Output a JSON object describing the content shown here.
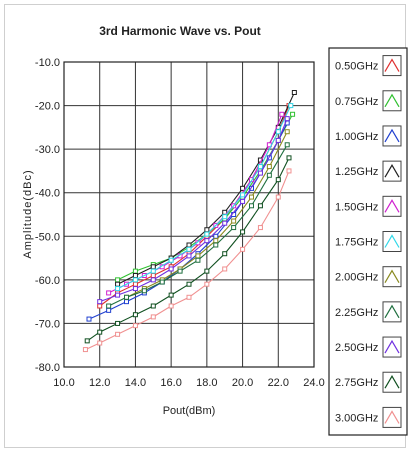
{
  "chart_data": {
    "type": "line",
    "title": "3rd Harmonic Wave vs. Pout",
    "xlabel": "Pout(dBm)",
    "ylabel": "Amplitude(dBc)",
    "xlim": [
      10.0,
      24.0
    ],
    "ylim": [
      -80.0,
      -10.0
    ],
    "x_ticks": [
      "10.0",
      "12.0",
      "14.0",
      "16.0",
      "18.0",
      "20.0",
      "22.0",
      "24.0"
    ],
    "y_ticks": [
      "-10.0",
      "-20.0",
      "-30.0",
      "-40.0",
      "-50.0",
      "-60.0",
      "-70.0",
      "-80.0"
    ],
    "grid": true,
    "legend_position": "right",
    "series": [
      {
        "name": "0.50GHz",
        "color": "#e03030",
        "marker": "square",
        "points": [
          [
            12.0,
            -66
          ],
          [
            13.0,
            -63
          ],
          [
            14.0,
            -61
          ],
          [
            15.0,
            -59
          ],
          [
            16.0,
            -57
          ],
          [
            17.0,
            -54
          ],
          [
            18.0,
            -50
          ],
          [
            19.0,
            -46
          ],
          [
            20.0,
            -40
          ],
          [
            21.0,
            -34
          ],
          [
            22.0,
            -26
          ],
          [
            22.6,
            -20
          ]
        ]
      },
      {
        "name": "0.75GHz",
        "color": "#30c030",
        "marker": "square",
        "points": [
          [
            13.0,
            -60
          ],
          [
            14.0,
            -58
          ],
          [
            15.0,
            -56.5
          ],
          [
            16.0,
            -55
          ],
          [
            17.0,
            -52.5
          ],
          [
            18.0,
            -49.5
          ],
          [
            19.0,
            -46
          ],
          [
            20.0,
            -41
          ],
          [
            21.0,
            -35
          ],
          [
            22.0,
            -28
          ],
          [
            22.8,
            -22
          ]
        ]
      },
      {
        "name": "1.00GHz",
        "color": "#2040d0",
        "marker": "square",
        "points": [
          [
            11.4,
            -69
          ],
          [
            12.5,
            -67
          ],
          [
            13.5,
            -65
          ],
          [
            14.5,
            -63
          ],
          [
            15.5,
            -60.5
          ],
          [
            16.5,
            -57.5
          ],
          [
            17.5,
            -54
          ],
          [
            18.5,
            -50
          ],
          [
            19.5,
            -45
          ],
          [
            20.5,
            -39
          ],
          [
            21.5,
            -32
          ],
          [
            22.5,
            -24
          ]
        ]
      },
      {
        "name": "1.25GHz",
        "color": "#202020",
        "marker": "square",
        "points": [
          [
            13.0,
            -61
          ],
          [
            14.0,
            -59
          ],
          [
            15.0,
            -57
          ],
          [
            16.0,
            -55
          ],
          [
            17.0,
            -52
          ],
          [
            18.0,
            -48.5
          ],
          [
            19.0,
            -44.5
          ],
          [
            20.0,
            -39
          ],
          [
            21.0,
            -32.5
          ],
          [
            22.0,
            -25
          ],
          [
            22.9,
            -17
          ]
        ]
      },
      {
        "name": "1.50GHz",
        "color": "#d020d0",
        "marker": "square",
        "points": [
          [
            12.5,
            -63
          ],
          [
            13.5,
            -61
          ],
          [
            14.5,
            -59
          ],
          [
            15.5,
            -57
          ],
          [
            16.5,
            -54.5
          ],
          [
            17.5,
            -51.5
          ],
          [
            18.5,
            -47.5
          ],
          [
            19.5,
            -43
          ],
          [
            20.5,
            -37
          ],
          [
            21.5,
            -29
          ],
          [
            22.2,
            -22
          ]
        ]
      },
      {
        "name": "1.75GHz",
        "color": "#30d8e8",
        "marker": "square",
        "points": [
          [
            13.0,
            -62
          ],
          [
            14.0,
            -60
          ],
          [
            15.0,
            -58
          ],
          [
            16.0,
            -55.5
          ],
          [
            17.0,
            -53
          ],
          [
            18.0,
            -49.5
          ],
          [
            19.0,
            -45.5
          ],
          [
            20.0,
            -40.5
          ],
          [
            21.0,
            -34
          ],
          [
            22.0,
            -26
          ],
          [
            22.7,
            -20
          ]
        ]
      },
      {
        "name": "2.00GHz",
        "color": "#8a8a20",
        "marker": "square",
        "points": [
          [
            13.5,
            -64
          ],
          [
            14.5,
            -62
          ],
          [
            15.5,
            -60
          ],
          [
            16.5,
            -57.5
          ],
          [
            17.5,
            -54.5
          ],
          [
            18.5,
            -51
          ],
          [
            19.5,
            -46.5
          ],
          [
            20.5,
            -41
          ],
          [
            21.5,
            -34
          ],
          [
            22.5,
            -26
          ]
        ]
      },
      {
        "name": "2.25GHz",
        "color": "#207040",
        "marker": "square",
        "points": [
          [
            12.5,
            -66
          ],
          [
            13.5,
            -64
          ],
          [
            14.5,
            -62.5
          ],
          [
            15.5,
            -60.5
          ],
          [
            16.5,
            -58
          ],
          [
            17.5,
            -55.5
          ],
          [
            18.5,
            -52
          ],
          [
            19.5,
            -48
          ],
          [
            20.5,
            -43
          ],
          [
            21.5,
            -36
          ],
          [
            22.5,
            -29
          ]
        ]
      },
      {
        "name": "2.50GHz",
        "color": "#7030e0",
        "marker": "square",
        "points": [
          [
            12.0,
            -65
          ],
          [
            13.0,
            -63.5
          ],
          [
            14.0,
            -62
          ],
          [
            15.0,
            -60
          ],
          [
            16.0,
            -57.5
          ],
          [
            17.0,
            -54.5
          ],
          [
            18.0,
            -51
          ],
          [
            19.0,
            -47
          ],
          [
            20.0,
            -42
          ],
          [
            21.0,
            -35.5
          ],
          [
            22.0,
            -28
          ],
          [
            22.5,
            -23
          ]
        ]
      },
      {
        "name": "2.75GHz",
        "color": "#105020",
        "marker": "square",
        "points": [
          [
            11.3,
            -74
          ],
          [
            12.0,
            -72
          ],
          [
            13.0,
            -70
          ],
          [
            14.0,
            -68
          ],
          [
            15.0,
            -66
          ],
          [
            16.0,
            -63.5
          ],
          [
            17.0,
            -61
          ],
          [
            18.0,
            -58
          ],
          [
            19.0,
            -54
          ],
          [
            20.0,
            -49
          ],
          [
            21.0,
            -43
          ],
          [
            22.0,
            -37
          ],
          [
            22.6,
            -32
          ]
        ]
      },
      {
        "name": "3.00GHz",
        "color": "#f09090",
        "marker": "square",
        "points": [
          [
            11.2,
            -76
          ],
          [
            12.0,
            -74.5
          ],
          [
            13.0,
            -72.5
          ],
          [
            14.0,
            -70.5
          ],
          [
            15.0,
            -68.5
          ],
          [
            16.0,
            -66
          ],
          [
            17.0,
            -64
          ],
          [
            18.0,
            -61
          ],
          [
            19.0,
            -57.5
          ],
          [
            20.0,
            -53
          ],
          [
            21.0,
            -48
          ],
          [
            22.0,
            -41
          ],
          [
            22.6,
            -35
          ]
        ]
      }
    ]
  }
}
